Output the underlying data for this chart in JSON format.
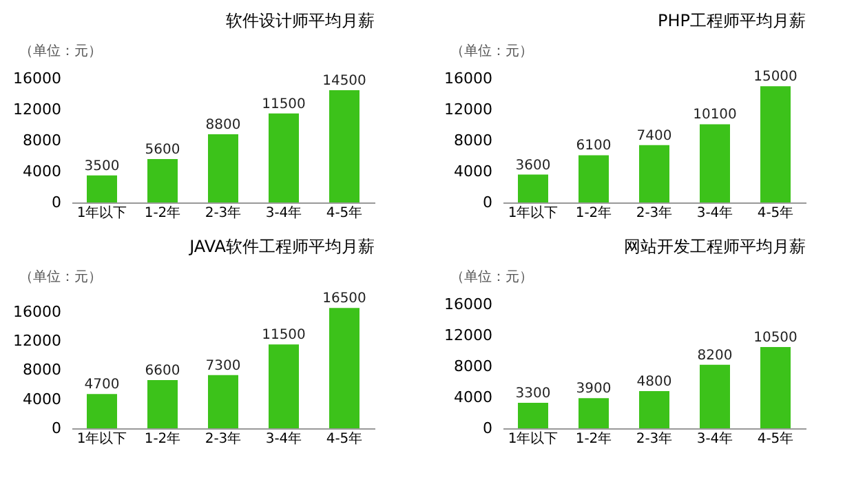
{
  "chart_data": [
    {
      "type": "bar",
      "title": "软件设计师平均月薪",
      "annotations": [
        "（单位：元）"
      ],
      "categories": [
        "1年以下",
        "1-2年",
        "2-3年",
        "3-4年",
        "4-5年"
      ],
      "values": [
        3500,
        5600,
        8800,
        11500,
        14500
      ],
      "color": "#3cc21a",
      "ylim": [
        0,
        16000
      ],
      "yticks": [
        0,
        4000,
        8000,
        12000,
        16000
      ],
      "data_labels": true
    },
    {
      "type": "bar",
      "title": "PHP工程师平均月薪",
      "annotations": [
        "（单位：元）"
      ],
      "categories": [
        "1年以下",
        "1-2年",
        "2-3年",
        "3-4年",
        "4-5年"
      ],
      "values": [
        3600,
        6100,
        7400,
        10100,
        15000
      ],
      "color": "#3cc21a",
      "ylim": [
        0,
        16000
      ],
      "yticks": [
        0,
        4000,
        8000,
        12000,
        16000
      ],
      "data_labels": true
    },
    {
      "type": "bar",
      "title": "JAVA软件工程师平均月薪",
      "annotations": [
        "（单位：元）"
      ],
      "categories": [
        "1年以下",
        "1-2年",
        "2-3年",
        "3-4年",
        "4-5年"
      ],
      "values": [
        4700,
        6600,
        7300,
        11500,
        16500
      ],
      "color": "#3cc21a",
      "ylim": [
        0,
        17000
      ],
      "yticks": [
        0,
        4000,
        8000,
        12000,
        16000
      ],
      "data_labels": true
    },
    {
      "type": "bar",
      "title": "网站开发工程师平均月薪",
      "annotations": [
        "（单位：元）"
      ],
      "categories": [
        "1年以下",
        "1-2年",
        "2-3年",
        "3-4年",
        "4-5年"
      ],
      "values": [
        3300,
        3900,
        4800,
        8200,
        10500
      ],
      "color": "#3cc21a",
      "ylim": [
        0,
        16000
      ],
      "yticks": [
        0,
        4000,
        8000,
        12000,
        16000
      ],
      "data_labels": true
    }
  ]
}
